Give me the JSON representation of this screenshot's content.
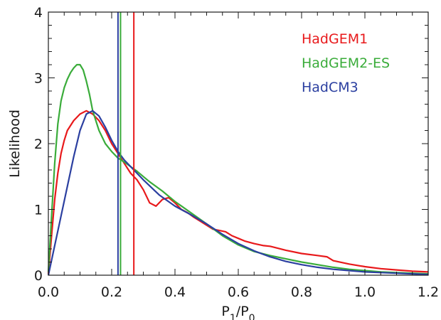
{
  "chart_data": {
    "type": "line",
    "xlabel": "P1/P0",
    "ylabel": "Likelihood",
    "xlim": [
      0.0,
      1.2
    ],
    "ylim": [
      0,
      4
    ],
    "x_ticks": [
      0.0,
      0.2,
      0.4,
      0.6,
      0.8,
      1.0,
      1.2
    ],
    "x_tick_labels": [
      "0.0",
      "0.2",
      "0.4",
      "0.6",
      "0.8",
      "1.0",
      "1.2"
    ],
    "y_ticks": [
      0,
      1,
      2,
      3,
      4
    ],
    "y_tick_labels": [
      "0",
      "1",
      "2",
      "3",
      "4"
    ],
    "legend_position": "top-right",
    "grid": false,
    "series": [
      {
        "name": "HadGEM1",
        "color": "#e8191b",
        "x": [
          0.0,
          0.01,
          0.02,
          0.03,
          0.04,
          0.05,
          0.06,
          0.08,
          0.1,
          0.12,
          0.14,
          0.16,
          0.18,
          0.2,
          0.22,
          0.24,
          0.26,
          0.28,
          0.3,
          0.32,
          0.34,
          0.36,
          0.38,
          0.4,
          0.42,
          0.44,
          0.46,
          0.48,
          0.5,
          0.52,
          0.54,
          0.56,
          0.58,
          0.6,
          0.62,
          0.65,
          0.68,
          0.7,
          0.75,
          0.8,
          0.85,
          0.88,
          0.9,
          0.95,
          1.0,
          1.05,
          1.1,
          1.15,
          1.2
        ],
        "y": [
          0.02,
          0.6,
          1.15,
          1.55,
          1.85,
          2.05,
          2.2,
          2.35,
          2.45,
          2.5,
          2.45,
          2.35,
          2.2,
          2.0,
          1.85,
          1.7,
          1.55,
          1.45,
          1.3,
          1.1,
          1.05,
          1.15,
          1.18,
          1.1,
          1.0,
          0.95,
          0.88,
          0.82,
          0.76,
          0.7,
          0.68,
          0.66,
          0.6,
          0.56,
          0.52,
          0.48,
          0.45,
          0.44,
          0.38,
          0.33,
          0.3,
          0.28,
          0.22,
          0.17,
          0.13,
          0.1,
          0.08,
          0.06,
          0.05
        ]
      },
      {
        "name": "HadGEM2-ES",
        "color": "#3aac3a",
        "x": [
          0.0,
          0.01,
          0.02,
          0.03,
          0.04,
          0.05,
          0.06,
          0.07,
          0.08,
          0.09,
          0.1,
          0.11,
          0.12,
          0.13,
          0.14,
          0.16,
          0.18,
          0.2,
          0.22,
          0.24,
          0.26,
          0.28,
          0.3,
          0.32,
          0.34,
          0.36,
          0.38,
          0.4,
          0.45,
          0.5,
          0.55,
          0.6,
          0.65,
          0.7,
          0.75,
          0.8,
          0.85,
          0.9,
          0.95,
          1.0,
          1.05,
          1.1,
          1.15,
          1.2
        ],
        "y": [
          0.05,
          0.9,
          1.7,
          2.3,
          2.65,
          2.85,
          2.98,
          3.08,
          3.15,
          3.2,
          3.2,
          3.12,
          2.95,
          2.75,
          2.5,
          2.2,
          2.0,
          1.88,
          1.78,
          1.72,
          1.65,
          1.58,
          1.5,
          1.42,
          1.35,
          1.28,
          1.2,
          1.12,
          0.95,
          0.78,
          0.6,
          0.46,
          0.36,
          0.3,
          0.25,
          0.2,
          0.16,
          0.12,
          0.09,
          0.07,
          0.05,
          0.04,
          0.03,
          0.02
        ]
      },
      {
        "name": "HadCM3",
        "color": "#2b3fa0",
        "x": [
          0.0,
          0.02,
          0.04,
          0.06,
          0.08,
          0.1,
          0.12,
          0.14,
          0.16,
          0.18,
          0.2,
          0.22,
          0.24,
          0.26,
          0.28,
          0.3,
          0.35,
          0.4,
          0.45,
          0.5,
          0.55,
          0.6,
          0.65,
          0.7,
          0.75,
          0.8,
          0.85,
          0.9,
          0.95,
          1.0,
          1.05,
          1.1,
          1.15,
          1.2
        ],
        "y": [
          0.0,
          0.45,
          0.9,
          1.35,
          1.8,
          2.2,
          2.45,
          2.5,
          2.42,
          2.25,
          2.05,
          1.88,
          1.75,
          1.65,
          1.55,
          1.45,
          1.22,
          1.05,
          0.92,
          0.78,
          0.62,
          0.48,
          0.37,
          0.28,
          0.21,
          0.16,
          0.12,
          0.09,
          0.07,
          0.05,
          0.04,
          0.03,
          0.02,
          0.01
        ]
      }
    ],
    "vertical_lines": [
      {
        "series": "HadGEM1",
        "x": 0.27,
        "color": "#e8191b"
      },
      {
        "series": "HadGEM2-ES",
        "x": 0.228,
        "color": "#3aac3a"
      },
      {
        "series": "HadCM3",
        "x": 0.22,
        "color": "#2b3fa0"
      }
    ]
  }
}
